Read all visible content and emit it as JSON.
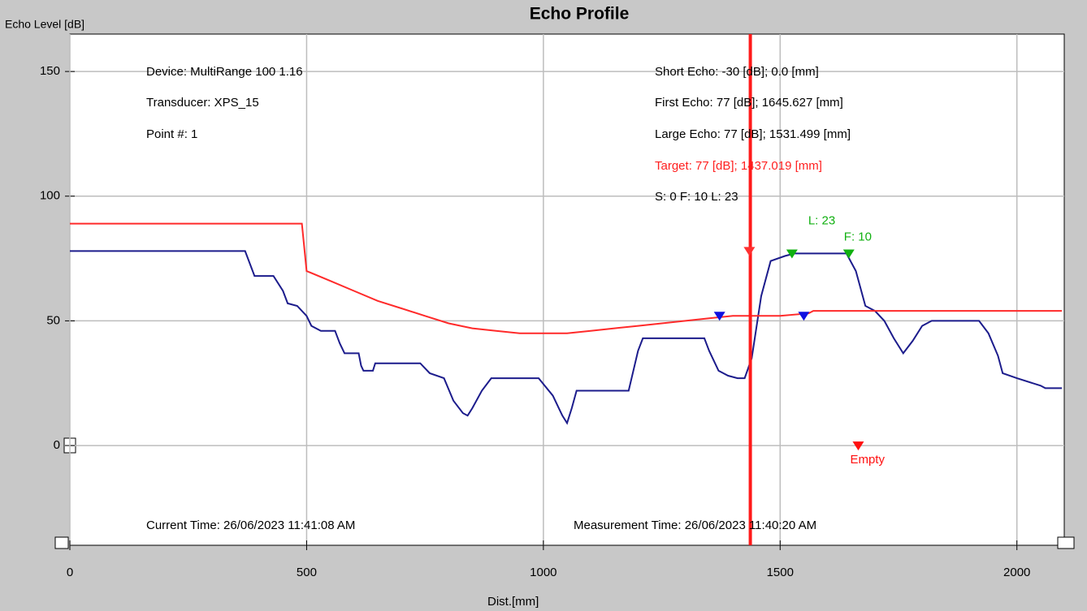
{
  "chart_data": {
    "type": "line",
    "title": "Echo Profile",
    "ylabel": "Echo Level [dB]",
    "xlabel": "Dist.[mm]",
    "xlim": [
      0,
      2100
    ],
    "ylim": [
      -40,
      165
    ],
    "xticks": [
      0,
      500,
      1000,
      1500,
      2000
    ],
    "yticks": [
      0,
      50,
      100,
      150
    ],
    "grid": true,
    "series": [
      {
        "color": "#1c1c8c",
        "x": [
          0,
          370,
          390,
          430,
          450,
          460,
          480,
          500,
          510,
          530,
          560,
          570,
          580,
          610,
          615,
          620,
          640,
          645,
          740,
          760,
          790,
          810,
          830,
          840,
          850,
          870,
          890,
          990,
          1020,
          1040,
          1050,
          1060,
          1070,
          1180,
          1200,
          1210,
          1340,
          1350,
          1370,
          1390,
          1410,
          1425,
          1440,
          1460,
          1480,
          1510,
          1530,
          1640,
          1660,
          1680,
          1700,
          1720,
          1740,
          1760,
          1780,
          1800,
          1820,
          1920,
          1940,
          1960,
          1970,
          2000,
          2050,
          2060,
          2095
        ],
        "values": [
          78,
          78,
          68,
          68,
          62,
          57,
          56,
          52,
          48,
          46,
          46,
          41,
          37,
          37,
          32,
          30,
          30,
          33,
          33,
          29,
          27,
          18,
          13,
          12,
          15,
          22,
          27,
          27,
          20,
          12,
          9,
          15,
          22,
          22,
          38,
          43,
          43,
          38,
          30,
          28,
          27,
          27,
          35,
          60,
          74,
          76,
          77,
          77,
          70,
          56,
          54,
          50,
          43,
          37,
          42,
          48,
          50,
          50,
          45,
          36,
          29,
          27,
          24,
          23,
          23
        ]
      },
      {
        "color": "#ff2a2a",
        "x": [
          0,
          490,
          500,
          550,
          600,
          650,
          700,
          750,
          800,
          850,
          900,
          950,
          1000,
          1050,
          1100,
          1150,
          1200,
          1250,
          1300,
          1350,
          1400,
          1500,
          1560,
          1570,
          2095
        ],
        "values": [
          89,
          89,
          70,
          66,
          62,
          58,
          55,
          52,
          49,
          47,
          46,
          45,
          45,
          45,
          46,
          47,
          48,
          49,
          50,
          51,
          52,
          52,
          53,
          54,
          54
        ]
      }
    ],
    "target_x": 1437.019,
    "target_color": "#ff1a1a",
    "markers": [
      {
        "x": 1435,
        "y": 78,
        "color": "#ff3030"
      },
      {
        "x": 1525,
        "y": 77,
        "color": "#10b010",
        "label": "L: 23"
      },
      {
        "x": 1645,
        "y": 77,
        "color": "#10b010",
        "label": "F: 10"
      },
      {
        "x": 1372,
        "y": 52,
        "color": "#1010e0"
      },
      {
        "x": 1550,
        "y": 52,
        "color": "#1010e0"
      },
      {
        "x": 1665,
        "y": 0,
        "color": "#ff1010",
        "label": "Empty"
      }
    ],
    "annotations": [
      {
        "text": "Device: MultiRange 100  1.16",
        "color": "#000000"
      },
      {
        "text": "Transducer: XPS_15",
        "color": "#000000"
      },
      {
        "text": "Point #: 1",
        "color": "#000000"
      },
      {
        "text": "Short Echo: -30 [dB]; 0.0 [mm]",
        "color": "#000000"
      },
      {
        "text": "First Echo: 77 [dB]; 1645.627 [mm]",
        "color": "#000000"
      },
      {
        "text": "Large Echo: 77 [dB]; 1531.499 [mm]",
        "color": "#000000"
      },
      {
        "text": "Target: 77 [dB]; 1437.019 [mm]",
        "color": "#ff2020"
      },
      {
        "text": "S: 0   F: 10   L: 23",
        "color": "#000000"
      },
      {
        "text": "Current Time: 26/06/2023 11:41:08 AM",
        "color": "#000000"
      },
      {
        "text": "Measurement Time: 26/06/2023 11:40:20 AM",
        "color": "#000000"
      }
    ]
  }
}
